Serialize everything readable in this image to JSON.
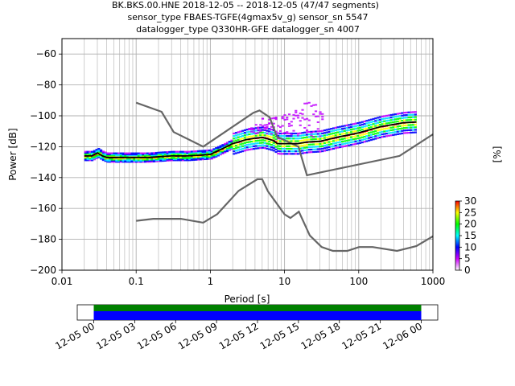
{
  "title": {
    "line1": "BK.BKS.00.HNE   2018-12-05 -- 2018-12-05  (47/47 segments)",
    "line2": "sensor_type FBAES-TGFE(4gmax5v_g) sensor_sn 5547",
    "line3": "datalogger_type Q330HR-GFE datalogger_sn 4007"
  },
  "chart_data": [
    {
      "type": "line",
      "name": "ppsd",
      "xlabel": "Period [s]",
      "ylabel": "Power [dB]",
      "x_scale": "log",
      "xlim": [
        0.01,
        1000
      ],
      "ylim": [
        -200,
        -50
      ],
      "x_ticks": [
        {
          "value": 0.01,
          "label": "0.01"
        },
        {
          "value": 0.1,
          "label": "0.1"
        },
        {
          "value": 1,
          "label": "1"
        },
        {
          "value": 10,
          "label": "10"
        },
        {
          "value": 100,
          "label": "100"
        },
        {
          "value": 1000,
          "label": "1000"
        }
      ],
      "y_ticks": [
        {
          "value": -60,
          "label": "−60"
        },
        {
          "value": -80,
          "label": "−80"
        },
        {
          "value": -100,
          "label": "−100"
        },
        {
          "value": -120,
          "label": "−120"
        },
        {
          "value": -140,
          "label": "−140"
        },
        {
          "value": -160,
          "label": "−160"
        },
        {
          "value": -180,
          "label": "−180"
        },
        {
          "value": -200,
          "label": "−200"
        }
      ],
      "grid": true,
      "noise_models": [
        {
          "x": [
            0.1,
            0.22,
            0.32,
            0.8,
            3.8,
            4.6,
            6.3,
            7.9,
            15.4,
            20,
            354.8,
            1000
          ],
          "y": [
            -91.5,
            -97.4,
            -110.5,
            -120,
            -98,
            -96.5,
            -101,
            -113.5,
            -120,
            -138.5,
            -126,
            -112
          ]
        },
        {
          "x": [
            0.1,
            0.17,
            0.4,
            0.8,
            1.24,
            2.4,
            4.3,
            5,
            6,
            10,
            12,
            15.6,
            21.9,
            31.6,
            45,
            70,
            101,
            154,
            328,
            600,
            1000
          ],
          "y": [
            -168,
            -166.7,
            -166.7,
            -169.2,
            -163.7,
            -148.6,
            -141.1,
            -141.1,
            -149,
            -163.8,
            -166.2,
            -162.1,
            -177.5,
            -185,
            -187.5,
            -187.5,
            -185,
            -185,
            -187.5,
            -184.4,
            -178
          ]
        }
      ],
      "mode_curve": {
        "x": [
          0.02,
          0.025,
          0.03,
          0.035,
          0.04,
          0.05,
          0.07,
          0.1,
          0.15,
          0.2,
          0.3,
          0.5,
          0.7,
          1,
          1.5,
          2,
          3,
          4,
          5,
          6,
          7,
          8,
          10,
          15,
          20,
          30,
          50,
          100,
          200,
          400,
          600
        ],
        "y": [
          -126,
          -126,
          -124,
          -126,
          -127,
          -127,
          -127,
          -127,
          -127,
          -126.5,
          -126,
          -126,
          -125.5,
          -125,
          -121,
          -118,
          -115.5,
          -114.5,
          -114,
          -115,
          -116,
          -118,
          -118,
          -118,
          -117,
          -116.5,
          -114,
          -111,
          -107,
          -104.5,
          -104
        ]
      },
      "colorbar": {
        "label": "[%]",
        "ticks": [
          0,
          5,
          10,
          15,
          20,
          25,
          30
        ],
        "colors": [
          "#ffffff",
          "#d000ff",
          "#0000ff",
          "#00ffff",
          "#00ff00",
          "#ffff00",
          "#ff0000"
        ]
      }
    },
    {
      "type": "timeline",
      "name": "data-coverage",
      "x_ticks": [
        "12-05 00",
        "12-05 03",
        "12-05 06",
        "12-05 09",
        "12-05 12",
        "12-05 15",
        "12-05 18",
        "12-05 21",
        "12-06 00"
      ],
      "coverage_start": "12-05 00",
      "coverage_end": "12-06 00",
      "colors": {
        "processed": "#008000",
        "available": "#0000ff"
      }
    }
  ]
}
